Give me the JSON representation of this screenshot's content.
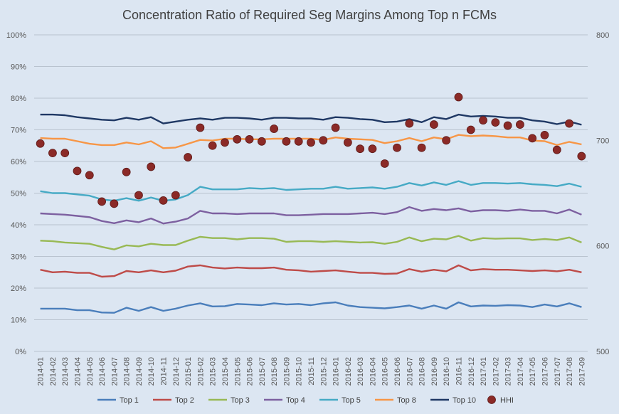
{
  "chart_data": {
    "type": "line",
    "title": "Concentration Ratio of Required Seg Margins Among Top n FCMs",
    "x": [
      "2014-01",
      "2014-02",
      "2014-03",
      "2014-04",
      "2014-05",
      "2014-06",
      "2014-07",
      "2014-08",
      "2014-09",
      "2014-10",
      "2014-11",
      "2014-12",
      "2015-01",
      "2015-02",
      "2015-03",
      "2015-04",
      "2015-05",
      "2015-06",
      "2015-07",
      "2015-08",
      "2015-09",
      "2015-10",
      "2015-11",
      "2015-12",
      "2016-01",
      "2016-02",
      "2016-03",
      "2016-04",
      "2016-05",
      "2016-06",
      "2016-07",
      "2016-08",
      "2016-09",
      "2016-10",
      "2016-11",
      "2016-12",
      "2017-01",
      "2017-02",
      "2017-03",
      "2017-04",
      "2017-05",
      "2017-06",
      "2017-07",
      "2017-08",
      "2017-09"
    ],
    "y_left": {
      "ylim": [
        0,
        100
      ],
      "ticks": [
        0,
        10,
        20,
        30,
        40,
        50,
        60,
        70,
        80,
        90,
        100
      ],
      "unit": "%"
    },
    "y_right": {
      "ylim": [
        500,
        800
      ],
      "ticks": [
        500,
        600,
        700,
        800
      ]
    },
    "grid": true,
    "legend_position": "bottom",
    "series": [
      {
        "name": "Top 1",
        "color": "#4a7ebb",
        "axis": "left",
        "values": [
          13.5,
          13.5,
          13.5,
          13,
          13,
          12.3,
          12.2,
          13.8,
          12.8,
          14,
          12.8,
          13.5,
          14.5,
          15.2,
          14.2,
          14.3,
          15,
          14.8,
          14.6,
          15.2,
          14.8,
          15,
          14.6,
          15.2,
          15.5,
          14.5,
          14,
          13.8,
          13.6,
          14,
          14.5,
          13.5,
          14.5,
          13.5,
          15.5,
          14.2,
          14.5,
          14.4,
          14.6,
          14.5,
          14,
          14.8,
          14.2,
          15.2,
          14
        ]
      },
      {
        "name": "Top 2",
        "color": "#be4b48",
        "axis": "left",
        "values": [
          25.8,
          25,
          25.2,
          24.8,
          24.8,
          23.6,
          23.8,
          25.4,
          25,
          25.6,
          25,
          25.5,
          26.8,
          27.2,
          26.5,
          26.2,
          26.5,
          26.3,
          26.3,
          26.5,
          25.8,
          25.6,
          25.2,
          25.4,
          25.6,
          25.2,
          24.8,
          24.8,
          24.5,
          24.6,
          26,
          25.2,
          25.8,
          25.3,
          27.2,
          25.6,
          26,
          25.8,
          25.8,
          25.6,
          25.4,
          25.6,
          25.3,
          25.8,
          25
        ]
      },
      {
        "name": "Top 3",
        "color": "#98b954",
        "axis": "left",
        "values": [
          35,
          34.8,
          34.4,
          34.2,
          34,
          33,
          32.2,
          33.5,
          33.2,
          34,
          33.6,
          33.6,
          35,
          36.2,
          35.8,
          35.8,
          35.4,
          35.8,
          35.8,
          35.6,
          34.6,
          34.8,
          34.8,
          34.6,
          34.8,
          34.6,
          34.4,
          34.5,
          34,
          34.6,
          36,
          34.8,
          35.6,
          35.4,
          36.5,
          35,
          35.8,
          35.6,
          35.7,
          35.7,
          35.2,
          35.5,
          35.2,
          36,
          34.4
        ]
      },
      {
        "name": "Top 4",
        "color": "#7d60a0",
        "axis": "left",
        "values": [
          43.6,
          43.4,
          43.2,
          42.8,
          42.4,
          41.2,
          40.5,
          41.4,
          40.8,
          42,
          40.4,
          41,
          42,
          44.4,
          43.6,
          43.6,
          43.4,
          43.6,
          43.6,
          43.6,
          43,
          43,
          43.2,
          43.4,
          43.4,
          43.4,
          43.6,
          43.8,
          43.4,
          44,
          45.6,
          44.4,
          45,
          44.6,
          45.2,
          44.2,
          44.6,
          44.6,
          44.4,
          44.8,
          44.4,
          44.4,
          43.6,
          44.8,
          43.2
        ]
      },
      {
        "name": "Top 5",
        "color": "#46aac5",
        "axis": "left",
        "values": [
          50.6,
          50,
          50,
          49.6,
          49.2,
          48,
          47.6,
          48.4,
          47.6,
          48.6,
          47.6,
          48,
          49.4,
          52,
          51.2,
          51.2,
          51.2,
          51.6,
          51.4,
          51.6,
          51,
          51.2,
          51.4,
          51.4,
          52,
          51.4,
          51.6,
          51.8,
          51.4,
          52,
          53.2,
          52.4,
          53.4,
          52.6,
          53.8,
          52.6,
          53.2,
          53.2,
          53,
          53.2,
          52.8,
          52.6,
          52.2,
          53,
          52
        ]
      },
      {
        "name": "Top 8",
        "color": "#f79646",
        "axis": "left",
        "values": [
          67.4,
          67.2,
          67.2,
          66.4,
          65.6,
          65.2,
          65.2,
          66,
          65.4,
          66.4,
          64.2,
          64.4,
          65.6,
          66.8,
          66.6,
          67.2,
          67.2,
          67,
          67,
          67.2,
          67.2,
          67.2,
          67.2,
          66.8,
          67.6,
          67.2,
          67,
          66.8,
          65.8,
          66.4,
          67.4,
          66.4,
          67.6,
          67,
          68.4,
          68,
          68.2,
          68,
          67.6,
          67.6,
          66.6,
          66.4,
          65.2,
          66.2,
          65.4
        ]
      },
      {
        "name": "Top 10",
        "color": "#1f3864",
        "axis": "left",
        "values": [
          74.8,
          74.8,
          74.6,
          74,
          73.6,
          73.2,
          73,
          73.8,
          73.2,
          74,
          72,
          72.6,
          73.2,
          73.6,
          73.2,
          73.8,
          73.8,
          73.6,
          73.2,
          73.8,
          73.8,
          73.6,
          73.6,
          73.2,
          74,
          73.8,
          73.4,
          73.2,
          72.4,
          72.6,
          73.4,
          72.4,
          74,
          73.4,
          74.8,
          74.2,
          74.4,
          74.2,
          73.8,
          73.8,
          73,
          72.6,
          71.8,
          72.6,
          71.6
        ]
      },
      {
        "name": "HHI",
        "color": "#8b2a27",
        "axis": "right",
        "type": "scatter",
        "values": [
          697,
          688,
          688,
          671,
          667,
          642,
          640,
          670,
          648,
          675,
          643,
          648,
          684,
          712,
          695,
          698,
          701,
          701,
          699,
          711,
          699,
          699,
          698,
          700,
          712,
          698,
          692,
          692,
          678,
          693,
          716,
          693,
          715,
          700,
          741,
          710,
          719,
          717,
          714,
          715,
          702,
          705,
          691,
          716,
          685
        ]
      }
    ]
  }
}
